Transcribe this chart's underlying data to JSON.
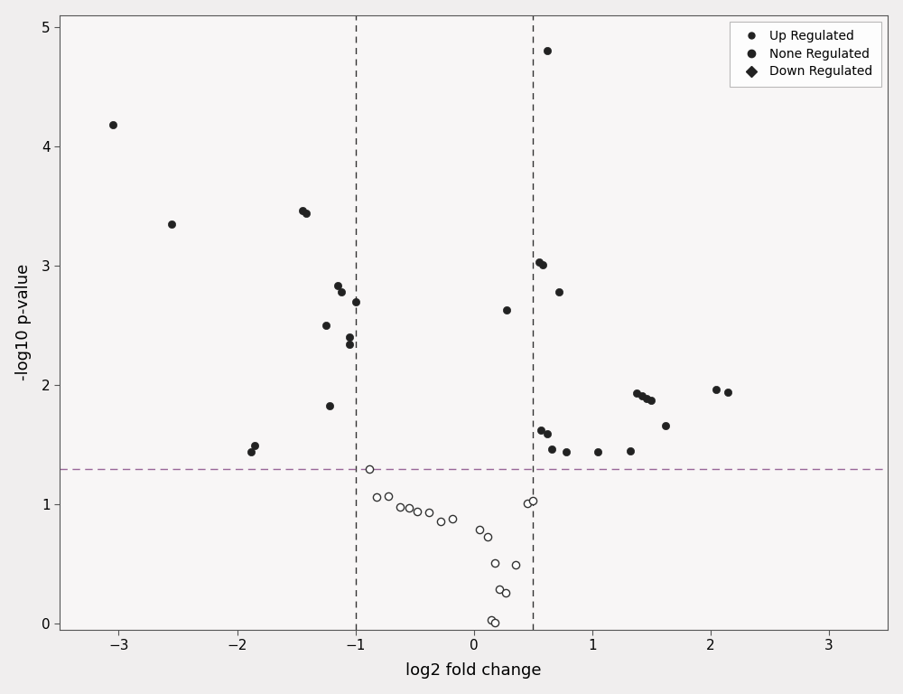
{
  "title": "",
  "xlabel": "log2 fold change",
  "ylabel": "-log10 p-value",
  "xlim": [
    -3.5,
    3.5
  ],
  "ylim": [
    -0.05,
    5.1
  ],
  "xticks": [
    -3,
    -2,
    -1,
    0,
    1,
    2,
    3
  ],
  "yticks": [
    0,
    1,
    2,
    3,
    4,
    5
  ],
  "vline1": -1.0,
  "vline2": 0.5,
  "hline": 1.3,
  "vline_color": "#333333",
  "hline_color": "#996699",
  "down_regulated": [
    [
      -3.05,
      4.18
    ],
    [
      -2.55,
      3.35
    ],
    [
      -1.85,
      1.49
    ],
    [
      -1.88,
      1.44
    ],
    [
      -1.45,
      3.46
    ],
    [
      -1.42,
      3.44
    ],
    [
      -1.25,
      2.5
    ],
    [
      -1.22,
      1.83
    ],
    [
      -1.15,
      2.83
    ],
    [
      -1.12,
      2.78
    ],
    [
      -1.05,
      2.4
    ],
    [
      -1.05,
      2.34
    ],
    [
      -1.0,
      2.7
    ]
  ],
  "up_regulated": [
    [
      0.62,
      4.8
    ],
    [
      0.55,
      3.03
    ],
    [
      0.58,
      3.01
    ],
    [
      0.28,
      2.63
    ],
    [
      0.72,
      2.78
    ],
    [
      0.57,
      1.62
    ],
    [
      0.62,
      1.59
    ],
    [
      0.66,
      1.46
    ],
    [
      0.78,
      1.44
    ],
    [
      1.05,
      1.44
    ],
    [
      1.32,
      1.45
    ],
    [
      1.38,
      1.93
    ],
    [
      1.42,
      1.91
    ],
    [
      1.46,
      1.89
    ],
    [
      1.5,
      1.87
    ],
    [
      1.62,
      1.66
    ],
    [
      2.05,
      1.96
    ],
    [
      2.15,
      1.94
    ]
  ],
  "none_regulated": [
    [
      -0.88,
      1.3
    ],
    [
      -0.82,
      1.06
    ],
    [
      -0.72,
      1.07
    ],
    [
      -0.62,
      0.98
    ],
    [
      -0.55,
      0.97
    ],
    [
      -0.48,
      0.94
    ],
    [
      -0.38,
      0.93
    ],
    [
      -0.28,
      0.86
    ],
    [
      -0.18,
      0.88
    ],
    [
      0.05,
      0.79
    ],
    [
      0.12,
      0.73
    ],
    [
      0.18,
      0.51
    ],
    [
      0.22,
      0.29
    ],
    [
      0.27,
      0.26
    ],
    [
      0.15,
      0.03
    ],
    [
      0.18,
      0.01
    ],
    [
      0.35,
      0.49
    ],
    [
      0.45,
      1.01
    ],
    [
      0.5,
      1.03
    ]
  ],
  "down_color": "#222222",
  "up_color": "#222222",
  "none_edge_color": "#333333",
  "none_face_color": "white",
  "marker_size": 35,
  "background_color": "#f0eeee",
  "plot_bg_color": "#f8f6f6",
  "legend_loc": "upper right"
}
